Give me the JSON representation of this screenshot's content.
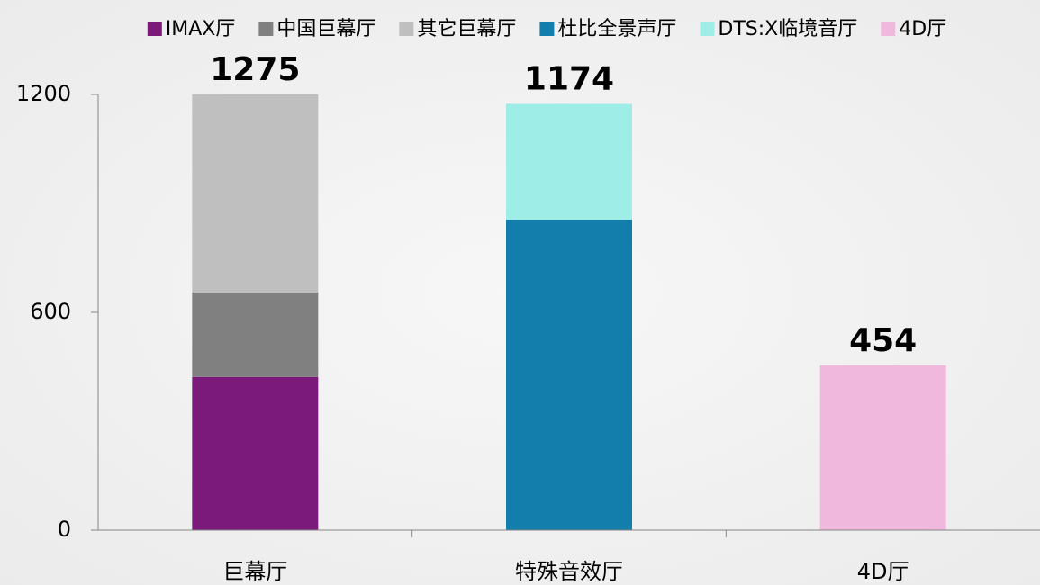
{
  "chart_data": {
    "type": "stacked_bar",
    "categories": [
      "巨幕厅",
      "特殊音效厅",
      "4D厅"
    ],
    "series": [
      {
        "name": "IMAX厅",
        "color": "#7b1a7b",
        "values": [
          422,
          null,
          null
        ]
      },
      {
        "name": "中国巨幕厅",
        "color": "#808080",
        "values": [
          233,
          null,
          null
        ]
      },
      {
        "name": "其它巨幕厅",
        "color": "#bfbfbf",
        "values": [
          620,
          null,
          null
        ]
      },
      {
        "name": "杜比全景声厅",
        "color": "#137eac",
        "values": [
          null,
          855,
          null
        ]
      },
      {
        "name": "DTS:X临境音厅",
        "color": "#9eede6",
        "values": [
          null,
          319,
          null
        ]
      },
      {
        "name": "4D厅",
        "color": "#f0b8dc",
        "values": [
          null,
          null,
          454
        ]
      }
    ],
    "totals": [
      1275,
      1174,
      454
    ],
    "ylim": [
      0,
      1200
    ],
    "yticks": [
      0,
      600,
      1200
    ],
    "grid": false,
    "legend": "top"
  }
}
